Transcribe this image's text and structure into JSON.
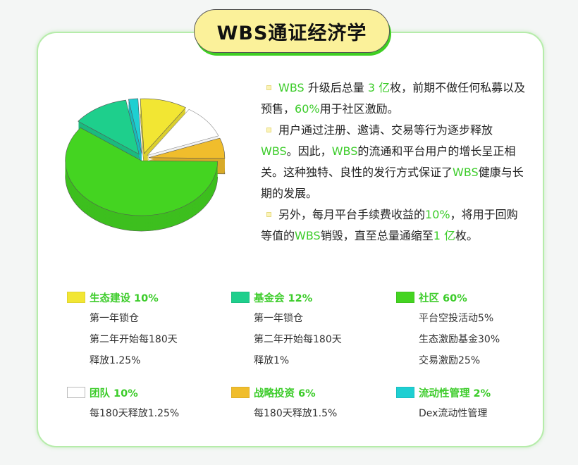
{
  "title": "WBS通证经济学",
  "description": [
    {
      "parts": [
        {
          "t": "WBS",
          "hl": true
        },
        {
          "t": " 升级后总量 ",
          "hl": false
        },
        {
          "t": "3 亿",
          "hl": true
        },
        {
          "t": "枚，前期不做任何私募以及预售，",
          "hl": false
        },
        {
          "t": "60%",
          "hl": true
        },
        {
          "t": "用于社区激励。",
          "hl": false
        }
      ]
    },
    {
      "parts": [
        {
          "t": "用户通过注册、邀请、交易等行为逐步释放",
          "hl": false
        },
        {
          "t": "WBS",
          "hl": true
        },
        {
          "t": "。因此，",
          "hl": false
        },
        {
          "t": "WBS",
          "hl": true
        },
        {
          "t": "的流通和平台用户的增长呈正相关。这种独特、良性的发行方式保证了",
          "hl": false
        },
        {
          "t": "WBS",
          "hl": true
        },
        {
          "t": "健康与长期的发展。",
          "hl": false
        }
      ]
    },
    {
      "parts": [
        {
          "t": "另外，每月平台手续费收益的",
          "hl": false
        },
        {
          "t": "10%",
          "hl": true
        },
        {
          "t": "，将用于回购等值的",
          "hl": false
        },
        {
          "t": "WBS",
          "hl": true
        },
        {
          "t": "销毁，直至总量通缩至",
          "hl": false
        },
        {
          "t": "1 亿",
          "hl": true
        },
        {
          "t": "枚。",
          "hl": false
        }
      ]
    }
  ],
  "legend": [
    {
      "label": "生态建设 10%",
      "color": "#f2e633",
      "lines": [
        "第一年锁仓",
        "第二年开始每180天",
        "释放1.25%"
      ]
    },
    {
      "label": "基金会 12%",
      "color": "#1ecf8c",
      "lines": [
        "第一年锁仓",
        "第二年开始每180天",
        "释放1%"
      ]
    },
    {
      "label": "社区 60%",
      "color": "#44d421",
      "lines": [
        "平台空投活动5%",
        "生态激励基金30%",
        "交易激励25%"
      ]
    },
    {
      "label": "团队 10%",
      "color": "#ffffff",
      "lines": [
        "每180天释放1.25%"
      ]
    },
    {
      "label": "战略投资 6%",
      "color": "#f0bd2c",
      "lines": [
        "每180天释放1.5%"
      ]
    },
    {
      "label": "流动性管理 2%",
      "color": "#1ecfd2",
      "lines": [
        "Dex流动性管理"
      ]
    }
  ],
  "chart_data": {
    "type": "pie",
    "style": "3d-exploded",
    "categories": [
      "流动性管理",
      "生态建设",
      "团队",
      "战略投资",
      "社区",
      "基金会"
    ],
    "values": [
      2,
      10,
      10,
      6,
      60,
      12
    ],
    "colors": [
      "#1ecfd2",
      "#f2e633",
      "#ffffff",
      "#f0bd2c",
      "#44d421",
      "#1ecf8c"
    ],
    "legend_position": "bottom"
  },
  "accent_color": "#3ccc2a"
}
